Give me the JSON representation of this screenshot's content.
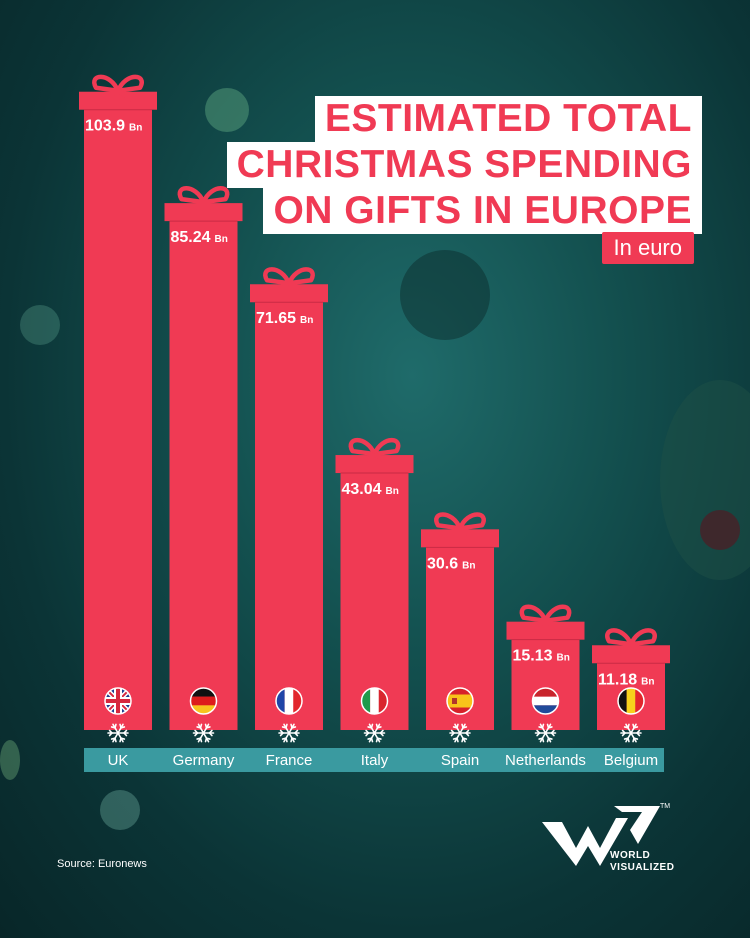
{
  "header": {
    "title_lines": [
      "ESTIMATED TOTAL",
      "CHRISTMAS SPENDING",
      "ON GIFTS IN EUROPE"
    ],
    "unit": "In euro"
  },
  "footer": {
    "source": "Source: Euronews",
    "brand_line1": "WORLD",
    "brand_line2": "VISUALIZED"
  },
  "colors": {
    "bar": "#f03a54",
    "label_strip": "#3a9aa0",
    "title_text": "#f03a54"
  },
  "chart_data": {
    "type": "bar",
    "title": "ESTIMATED TOTAL CHRISTMAS SPENDING ON GIFTS IN EUROPE",
    "subtitle": "In euro",
    "categories": [
      "UK",
      "Germany",
      "France",
      "Italy",
      "Spain",
      "Netherlands",
      "Belgium"
    ],
    "values": [
      103.9,
      85.24,
      71.65,
      43.04,
      30.6,
      15.13,
      11.18
    ],
    "value_labels": [
      "103.9",
      "85.24",
      "71.65",
      "43.04",
      "30.6",
      "15.13",
      "11.18"
    ],
    "value_unit": "Bn",
    "flags": [
      "uk-flag",
      "germany-flag",
      "france-flag",
      "italy-flag",
      "spain-flag",
      "netherlands-flag",
      "belgium-flag"
    ],
    "xlabel": "",
    "ylabel": "",
    "ylim": [
      0,
      105
    ],
    "grid": false
  }
}
